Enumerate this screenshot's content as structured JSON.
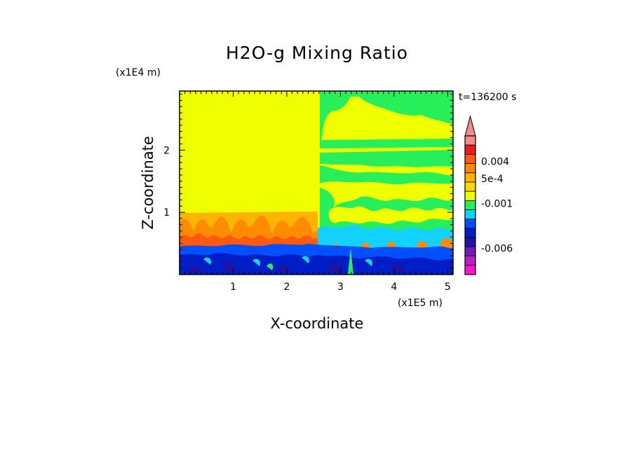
{
  "chart_data": {
    "type": "heatmap",
    "title": "H2O-g Mixing Ratio",
    "time_label": "t=136200 s",
    "xlabel": "X-coordinate",
    "ylabel": "Z-coordinate",
    "x_multiplier": "(x1E5 m)",
    "z_multiplier": "(x1E4 m)",
    "xlim": [
      0.0,
      5.1
    ],
    "ylim": [
      0.0,
      2.95
    ],
    "x_ticks": [
      "1",
      "2",
      "3",
      "4",
      "5"
    ],
    "x_tick_values": [
      1,
      2,
      3,
      4,
      5
    ],
    "z_ticks": [
      "1",
      "2"
    ],
    "z_tick_values": [
      1,
      2
    ],
    "colorbar": {
      "labels": [
        "0.004",
        "5e-4",
        "-0.001",
        "-0.006"
      ],
      "label_values": [
        0.004,
        0.0005,
        -0.001,
        -0.006
      ],
      "levels_top_to_bottom": [
        {
          "color": "#f08c8c"
        },
        {
          "color": "#ee1c1c"
        },
        {
          "color": "#ff5a14"
        },
        {
          "color": "#ff8c00"
        },
        {
          "color": "#ffb400"
        },
        {
          "color": "#ffd800"
        },
        {
          "color": "#eeff00"
        },
        {
          "color": "#28ee5a"
        },
        {
          "color": "#14d2ff"
        },
        {
          "color": "#0050ff"
        },
        {
          "color": "#001ec8"
        },
        {
          "color": "#1e14a0"
        },
        {
          "color": "#6e1eb4"
        },
        {
          "color": "#be1ec8"
        },
        {
          "color": "#ff14c8"
        }
      ],
      "extend": "max"
    },
    "fields": {
      "dominant_upper": "#eeff00",
      "right_half_upper": "#28ee5a",
      "boundary_layer": "#ff8c00",
      "surface_layer": "#001ec8"
    }
  }
}
